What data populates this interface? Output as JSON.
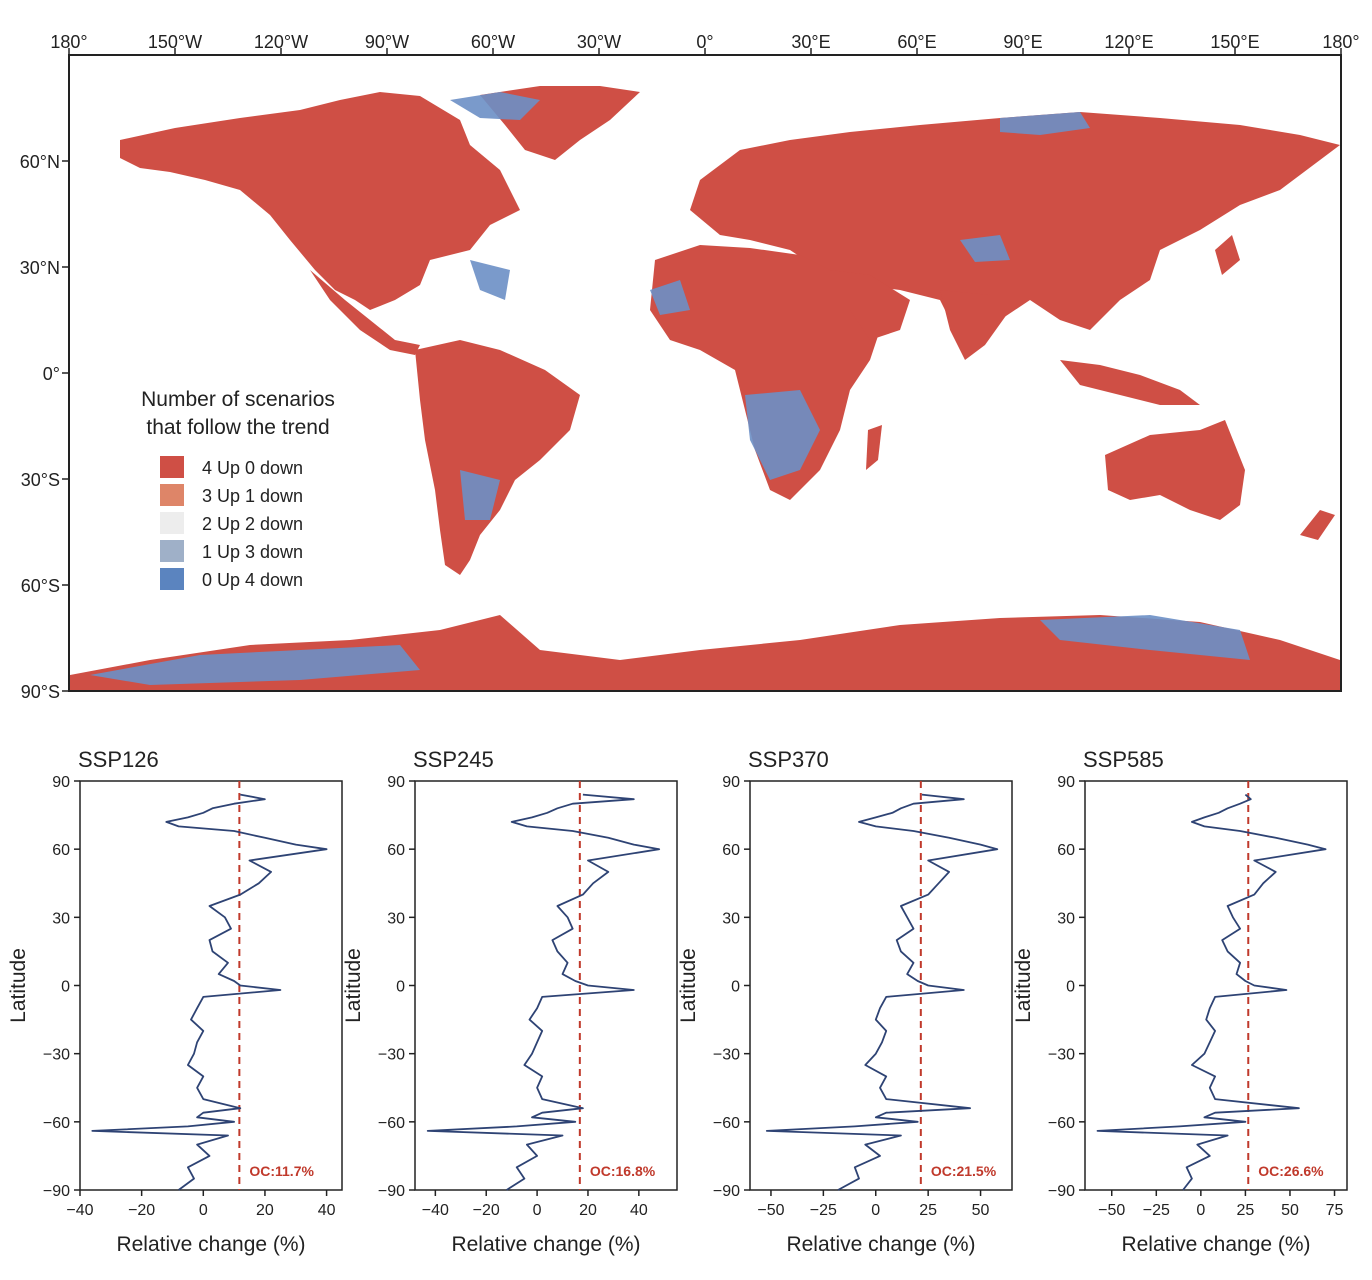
{
  "map": {
    "lon_ticks": [
      "180°",
      "150°W",
      "120°W",
      "90°W",
      "60°W",
      "30°W",
      "0°",
      "30°E",
      "60°E",
      "90°E",
      "120°E",
      "150°E",
      "180°"
    ],
    "lat_ticks": [
      "60°N",
      "30°N",
      "0°",
      "30°S",
      "60°S",
      "90°S"
    ],
    "legend": {
      "title_line1": "Number of scenarios",
      "title_line2": "that follow the trend",
      "items": [
        {
          "label": "4 Up 0 down",
          "color": "#cf4f45"
        },
        {
          "label": "3 Up 1 down",
          "color": "#de8568"
        },
        {
          "label": "2 Up 2 down",
          "color": "#ededed"
        },
        {
          "label": "1 Up 3 down",
          "color": "#9fb0c8"
        },
        {
          "label": "0 Up 4 down",
          "color": "#5b84bf"
        }
      ]
    },
    "colors": {
      "dominant": "#cf4f45",
      "decrease": "#6c8fc5",
      "ocean": "#ffffff"
    }
  },
  "chart_data": [
    {
      "type": "line",
      "title": "SSP126",
      "xlabel": "Relative change (%)",
      "ylabel": "Latitude",
      "xlim": [
        -40,
        45
      ],
      "ylim": [
        -90,
        90
      ],
      "xticks": [
        -40,
        -20,
        0,
        20,
        40
      ],
      "yticks": [
        90,
        60,
        30,
        0,
        -30,
        -60,
        -90
      ],
      "mean_line": {
        "x": 11.7,
        "label": "OC:11.7%",
        "color": "#c0392b"
      },
      "series": [
        {
          "color": "#2e4374",
          "lat": [
            -90,
            -85,
            -80,
            -75,
            -70,
            -66,
            -64,
            -62,
            -60,
            -58,
            -56,
            -54,
            -50,
            -45,
            -40,
            -35,
            -30,
            -25,
            -20,
            -15,
            -10,
            -5,
            -2,
            0,
            2,
            5,
            10,
            15,
            20,
            25,
            30,
            35,
            40,
            45,
            50,
            55,
            60,
            62,
            65,
            68,
            70,
            72,
            74,
            76,
            78,
            80,
            82,
            84
          ],
          "x": [
            -8,
            -3,
            -5,
            2,
            -2,
            8,
            -36,
            -5,
            10,
            -2,
            0,
            12,
            0,
            -2,
            0,
            -5,
            -3,
            -2,
            0,
            -4,
            -2,
            0,
            25,
            12,
            10,
            5,
            8,
            3,
            2,
            9,
            7,
            2,
            12,
            18,
            22,
            15,
            40,
            30,
            20,
            10,
            -8,
            -12,
            -5,
            0,
            3,
            10,
            20,
            12
          ]
        }
      ]
    },
    {
      "type": "line",
      "title": "SSP245",
      "xlabel": "Relative change (%)",
      "ylabel": "Latitude",
      "xlim": [
        -48,
        55
      ],
      "ylim": [
        -90,
        90
      ],
      "xticks": [
        -40,
        -20,
        0,
        20,
        40
      ],
      "yticks": [
        90,
        60,
        30,
        0,
        -30,
        -60,
        -90
      ],
      "mean_line": {
        "x": 16.8,
        "label": "OC:16.8%",
        "color": "#c0392b"
      },
      "series": [
        {
          "color": "#2e4374",
          "lat": [
            -90,
            -85,
            -80,
            -75,
            -70,
            -66,
            -64,
            -62,
            -60,
            -58,
            -56,
            -54,
            -50,
            -45,
            -40,
            -35,
            -30,
            -25,
            -20,
            -15,
            -10,
            -5,
            -2,
            0,
            2,
            5,
            10,
            15,
            20,
            25,
            30,
            35,
            40,
            45,
            50,
            55,
            60,
            62,
            65,
            68,
            70,
            72,
            74,
            76,
            78,
            80,
            82,
            84
          ],
          "x": [
            -12,
            -5,
            -8,
            0,
            -4,
            10,
            -43,
            -8,
            15,
            -2,
            2,
            18,
            2,
            0,
            2,
            -5,
            -2,
            0,
            2,
            -3,
            0,
            2,
            38,
            20,
            15,
            10,
            12,
            8,
            6,
            14,
            12,
            8,
            18,
            22,
            28,
            20,
            48,
            38,
            28,
            14,
            -4,
            -10,
            -2,
            4,
            8,
            14,
            38,
            18
          ]
        }
      ]
    },
    {
      "type": "line",
      "title": "SSP370",
      "xlabel": "Relative change (%)",
      "ylabel": "Latitude",
      "xlim": [
        -60,
        65
      ],
      "ylim": [
        -90,
        90
      ],
      "xticks": [
        -50,
        -25,
        0,
        25,
        50
      ],
      "yticks": [
        90,
        60,
        30,
        0,
        -30,
        -60,
        -90
      ],
      "mean_line": {
        "x": 21.5,
        "label": "OC:21.5%",
        "color": "#c0392b"
      },
      "series": [
        {
          "color": "#2e4374",
          "lat": [
            -90,
            -85,
            -80,
            -75,
            -70,
            -66,
            -64,
            -62,
            -60,
            -58,
            -56,
            -54,
            -50,
            -45,
            -40,
            -35,
            -30,
            -25,
            -20,
            -15,
            -10,
            -5,
            -2,
            0,
            2,
            5,
            10,
            15,
            20,
            25,
            30,
            35,
            40,
            45,
            50,
            55,
            60,
            62,
            65,
            68,
            70,
            72,
            74,
            76,
            78,
            80,
            82,
            84
          ],
          "x": [
            -18,
            -8,
            -10,
            2,
            -5,
            12,
            -52,
            -10,
            20,
            0,
            5,
            45,
            5,
            2,
            5,
            -5,
            0,
            3,
            5,
            0,
            2,
            5,
            42,
            25,
            20,
            15,
            18,
            12,
            10,
            18,
            15,
            12,
            25,
            30,
            35,
            25,
            58,
            50,
            35,
            18,
            0,
            -8,
            0,
            8,
            12,
            18,
            42,
            22
          ]
        }
      ]
    },
    {
      "type": "line",
      "title": "SSP585",
      "xlabel": "Relative change (%)",
      "ylabel": "Latitude",
      "xlim": [
        -65,
        82
      ],
      "ylim": [
        -90,
        90
      ],
      "xticks": [
        -50,
        -25,
        0,
        25,
        50,
        75
      ],
      "yticks": [
        90,
        60,
        30,
        0,
        -30,
        -60,
        -90
      ],
      "mean_line": {
        "x": 26.6,
        "label": "OC:26.6%",
        "color": "#c0392b"
      },
      "series": [
        {
          "color": "#2e4374",
          "lat": [
            -90,
            -85,
            -80,
            -75,
            -70,
            -66,
            -64,
            -62,
            -60,
            -58,
            -56,
            -54,
            -50,
            -45,
            -40,
            -35,
            -30,
            -25,
            -20,
            -15,
            -10,
            -5,
            -2,
            0,
            2,
            5,
            10,
            15,
            20,
            25,
            30,
            35,
            40,
            45,
            50,
            55,
            60,
            62,
            65,
            68,
            70,
            72,
            74,
            76,
            78,
            80,
            82,
            84
          ],
          "x": [
            -10,
            -5,
            -8,
            5,
            -2,
            15,
            -58,
            -12,
            25,
            2,
            8,
            55,
            8,
            5,
            8,
            -5,
            2,
            5,
            8,
            3,
            5,
            8,
            48,
            30,
            25,
            20,
            22,
            15,
            12,
            22,
            18,
            15,
            30,
            35,
            42,
            30,
            70,
            60,
            42,
            22,
            2,
            -5,
            2,
            10,
            15,
            22,
            28,
            25
          ]
        }
      ]
    }
  ]
}
